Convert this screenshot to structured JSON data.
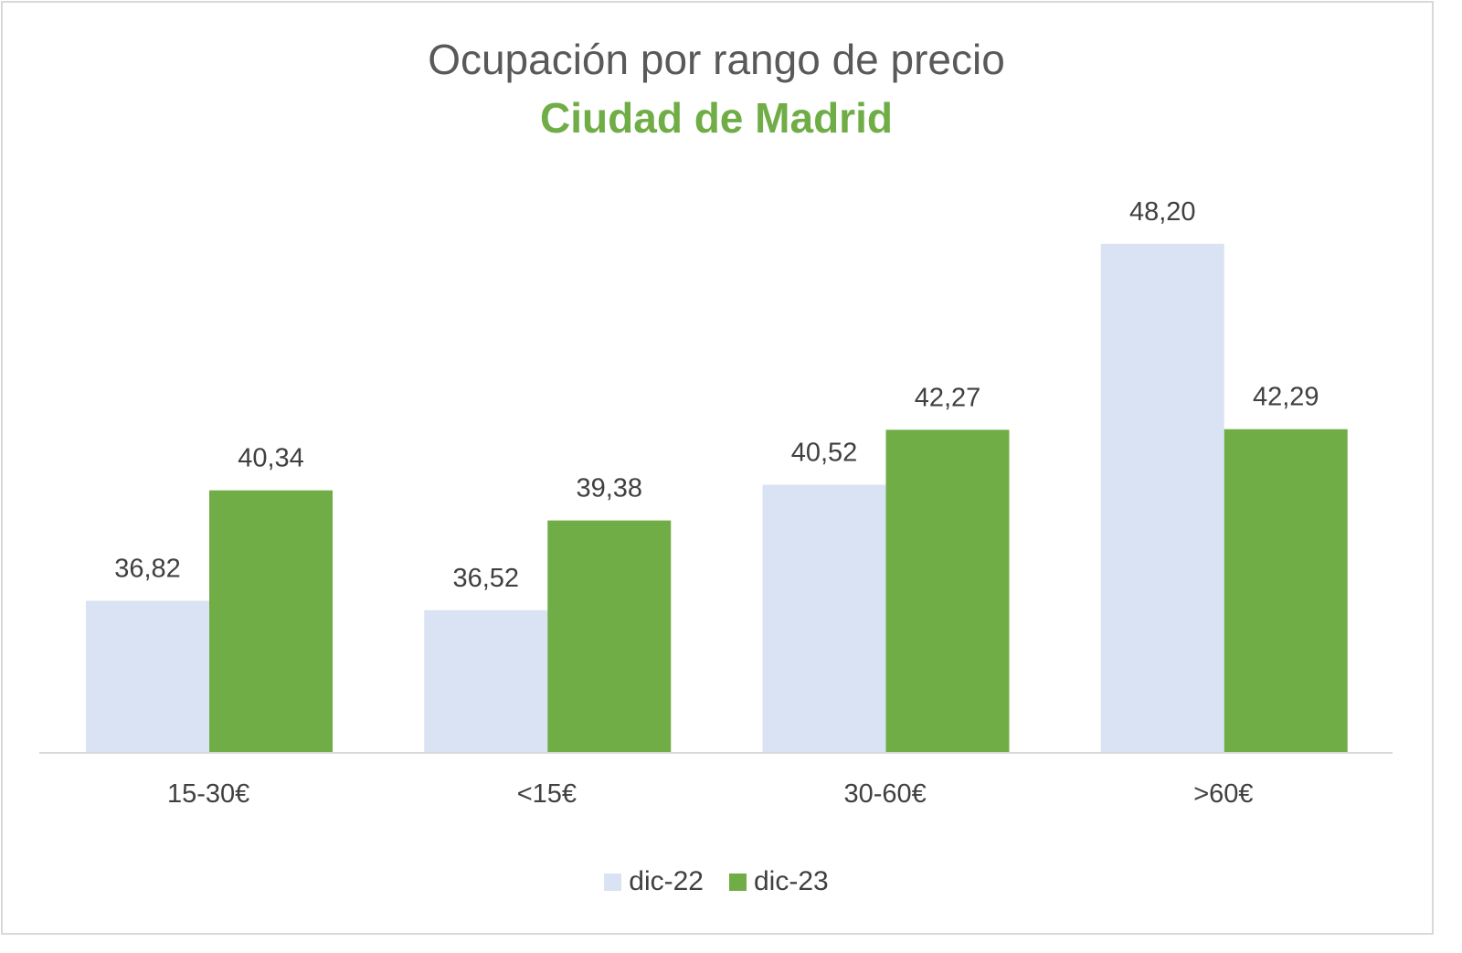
{
  "chart_data": {
    "type": "bar",
    "title": "Ocupación por rango de precio",
    "subtitle": "Ciudad de Madrid",
    "categories": [
      "15-30€",
      "<15€",
      "30-60€",
      ">60€"
    ],
    "series": [
      {
        "name": "dic-22",
        "values": [
          36.82,
          36.52,
          40.52,
          48.2
        ],
        "labels": [
          "36,82",
          "36,52",
          "40,52",
          "48,20"
        ],
        "color": "#dae3f3"
      },
      {
        "name": "dic-23",
        "values": [
          40.34,
          39.38,
          42.27,
          42.29
        ],
        "labels": [
          "40,34",
          "39,38",
          "42,27",
          "42,29"
        ],
        "color": "#70ad47"
      }
    ],
    "xlabel": "",
    "ylabel": "",
    "ylim": [
      32,
      50
    ],
    "y_axis_visible": false,
    "grid": false,
    "legend": "bottom",
    "title_color": "#595959",
    "subtitle_color": "#70ad47"
  }
}
